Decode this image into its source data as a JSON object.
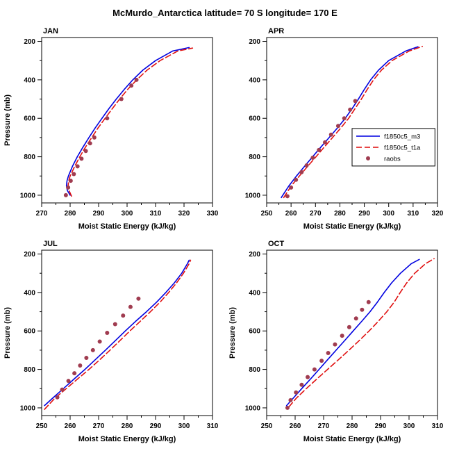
{
  "title": "McMurdo_Antarctica  latitude= 70 S longitude= 170 E",
  "colors": {
    "m3": "#0000e0",
    "t1a": "#e01010",
    "raobs": "#a03c50",
    "axis": "#000000"
  },
  "legend": {
    "entries": [
      {
        "id": "m3",
        "label": "f1850c5_m3",
        "type": "line",
        "dash": "none"
      },
      {
        "id": "t1a",
        "label": "f1850c5_t1a",
        "type": "line",
        "dash": "8 4"
      },
      {
        "id": "raobs",
        "label": "raobs",
        "type": "dot",
        "dash": "none"
      }
    ]
  },
  "chart_data": {
    "type": "line",
    "xlabel": "Moist Static Energy (kJ/kg)",
    "ylabel": "Pressure (mb)",
    "y": {
      "domain": [
        180,
        1040
      ],
      "ticks": [
        200,
        400,
        600,
        800,
        1000
      ],
      "minor": [
        300,
        500,
        700,
        900
      ]
    },
    "panels": [
      {
        "id": "jan",
        "label": "JAN",
        "xlim": [
          270,
          330
        ],
        "xticks": [
          270,
          280,
          290,
          300,
          310,
          320,
          330
        ],
        "xminor": [
          275,
          285,
          295,
          305,
          315,
          325
        ],
        "show_legend": false,
        "show_ylabel": true,
        "series": [
          {
            "id": "m3",
            "type": "line",
            "pressure": [
              1000,
              975,
              950,
              925,
              900,
              850,
              800,
              750,
              700,
              650,
              600,
              550,
              500,
              450,
              400,
              350,
              300,
              250,
              232
            ],
            "mse": [
              280,
              279,
              278.7,
              278.9,
              279.4,
              280.8,
              282.5,
              284.5,
              286.6,
              288.8,
              291.2,
              293.6,
              296.2,
              299,
              302,
              305.5,
              310,
              316,
              321.8
            ]
          },
          {
            "id": "t1a",
            "type": "line",
            "pressure": [
              1005,
              975,
              950,
              925,
              900,
              850,
              800,
              750,
              700,
              650,
              600,
              550,
              500,
              450,
              400,
              350,
              300,
              250,
              235
            ],
            "mse": [
              280.5,
              279.6,
              279.3,
              279.5,
              280,
              281.6,
              283.4,
              285.4,
              287.6,
              289.8,
              292.3,
              294.8,
              297.4,
              300.2,
              303.4,
              307,
              311.6,
              317.8,
              323
            ]
          },
          {
            "id": "raobs",
            "type": "dot",
            "pressure": [
              1000,
              960,
              925,
              890,
              850,
              810,
              770,
              730,
              700,
              600,
              500,
              430,
              400
            ],
            "mse": [
              278.5,
              279.3,
              280.2,
              281.3,
              282.6,
              284,
              285.5,
              287,
              288.5,
              293,
              298,
              301.5,
              303.3
            ]
          }
        ]
      },
      {
        "id": "apr",
        "label": "APR",
        "xlim": [
          250,
          320
        ],
        "xticks": [
          250,
          260,
          270,
          280,
          290,
          300,
          310,
          320
        ],
        "xminor": [
          255,
          265,
          275,
          285,
          295,
          305,
          315
        ],
        "show_legend": true,
        "show_ylabel": false,
        "series": [
          {
            "id": "m3",
            "type": "line",
            "pressure": [
              1012,
              1000,
              950,
              900,
              850,
              800,
              750,
              700,
              650,
              600,
              550,
              500,
              450,
              400,
              350,
              300,
              250,
              228
            ],
            "mse": [
              256,
              256.6,
              259.2,
              262.2,
              265.5,
              268.8,
              272.2,
              275.6,
              279,
              282.2,
              285,
              287.6,
              290,
              292.6,
              295.8,
              300,
              307,
              312
            ]
          },
          {
            "id": "t1a",
            "type": "line",
            "pressure": [
              1012,
              1000,
              950,
              900,
              850,
              800,
              750,
              700,
              650,
              600,
              550,
              500,
              450,
              400,
              350,
              300,
              250,
              226
            ],
            "mse": [
              257,
              257.6,
              260.2,
              263.4,
              266.8,
              270.2,
              273.6,
              277,
              280.4,
              283.6,
              286.2,
              288.8,
              291.2,
              293.8,
              297,
              301.4,
              308.4,
              313.8
            ]
          },
          {
            "id": "raobs",
            "type": "dot",
            "pressure": [
              1005,
              960,
              920,
              880,
              845,
              805,
              765,
              725,
              685,
              640,
              600,
              555,
              510
            ],
            "mse": [
              258.5,
              260,
              262,
              264.3,
              266.4,
              268.9,
              271.4,
              273.9,
              276.4,
              279.3,
              281.8,
              284.2,
              286.3
            ]
          }
        ]
      },
      {
        "id": "jul",
        "label": "JUL",
        "xlim": [
          250,
          310
        ],
        "xticks": [
          250,
          260,
          270,
          280,
          290,
          300,
          310
        ],
        "xminor": [
          255,
          265,
          275,
          285,
          295,
          305
        ],
        "show_legend": false,
        "show_ylabel": true,
        "series": [
          {
            "id": "m3",
            "type": "line",
            "pressure": [
              988,
              950,
              900,
              850,
              800,
              750,
              700,
              650,
              600,
              550,
              500,
              450,
              400,
              350,
              300,
              250,
              232
            ],
            "mse": [
              251,
              253.8,
              257.6,
              261.4,
              265.2,
              268.8,
              272.4,
              275.9,
              279.4,
              283,
              286.8,
              290.4,
              293.6,
              296.6,
              299.2,
              301.2,
              301.8
            ]
          },
          {
            "id": "t1a",
            "type": "line",
            "pressure": [
              1008,
              950,
              900,
              850,
              800,
              750,
              700,
              650,
              600,
              550,
              500,
              450,
              400,
              350,
              300,
              250,
              232
            ],
            "mse": [
              251,
              254.6,
              258.6,
              262.6,
              266.6,
              270.4,
              274,
              277.5,
              281,
              284.6,
              288.2,
              291.6,
              294.6,
              297.4,
              299.8,
              301.8,
              302.3
            ]
          },
          {
            "id": "raobs",
            "type": "dot",
            "pressure": [
              945,
              905,
              860,
              820,
              780,
              740,
              700,
              655,
              610,
              565,
              520,
              475,
              432
            ],
            "mse": [
              255.5,
              257.2,
              259.4,
              261.5,
              263.5,
              265.7,
              268,
              270.4,
              273,
              275.8,
              278.6,
              281.2,
              284
            ]
          }
        ]
      },
      {
        "id": "oct",
        "label": "OCT",
        "xlim": [
          250,
          310
        ],
        "xticks": [
          250,
          260,
          270,
          280,
          290,
          300,
          310
        ],
        "xminor": [
          255,
          265,
          275,
          285,
          295,
          305
        ],
        "show_legend": false,
        "show_ylabel": true,
        "series": [
          {
            "id": "m3",
            "type": "line",
            "pressure": [
              988,
              950,
              900,
              850,
              800,
              750,
              700,
              650,
              600,
              550,
              500,
              450,
              400,
              350,
              300,
              250,
              228
            ],
            "mse": [
              257,
              259.3,
              262.3,
              265.4,
              268.4,
              271.4,
              274.4,
              277.4,
              280.4,
              283.4,
              286.3,
              288.9,
              291.3,
              293.9,
              297,
              300.8,
              303.6
            ]
          },
          {
            "id": "t1a",
            "type": "line",
            "pressure": [
              995,
              950,
              900,
              850,
              800,
              750,
              700,
              650,
              600,
              550,
              500,
              450,
              400,
              350,
              300,
              250,
              224
            ],
            "mse": [
              257.8,
              260.4,
              263.9,
              267.6,
              271.4,
              275.2,
              278.9,
              282.5,
              286,
              289.2,
              292.2,
              294.8,
              296.9,
              299.2,
              302,
              305.8,
              308.8
            ]
          },
          {
            "id": "raobs",
            "type": "dot",
            "pressure": [
              1000,
              960,
              920,
              880,
              840,
              800,
              755,
              715,
              670,
              625,
              580,
              535,
              490,
              450
            ],
            "mse": [
              257.3,
              258.4,
              260.3,
              262.3,
              264.4,
              266.8,
              269.3,
              271.6,
              274,
              276.5,
              279,
              281.4,
              283.5,
              285.8
            ]
          }
        ]
      }
    ]
  }
}
